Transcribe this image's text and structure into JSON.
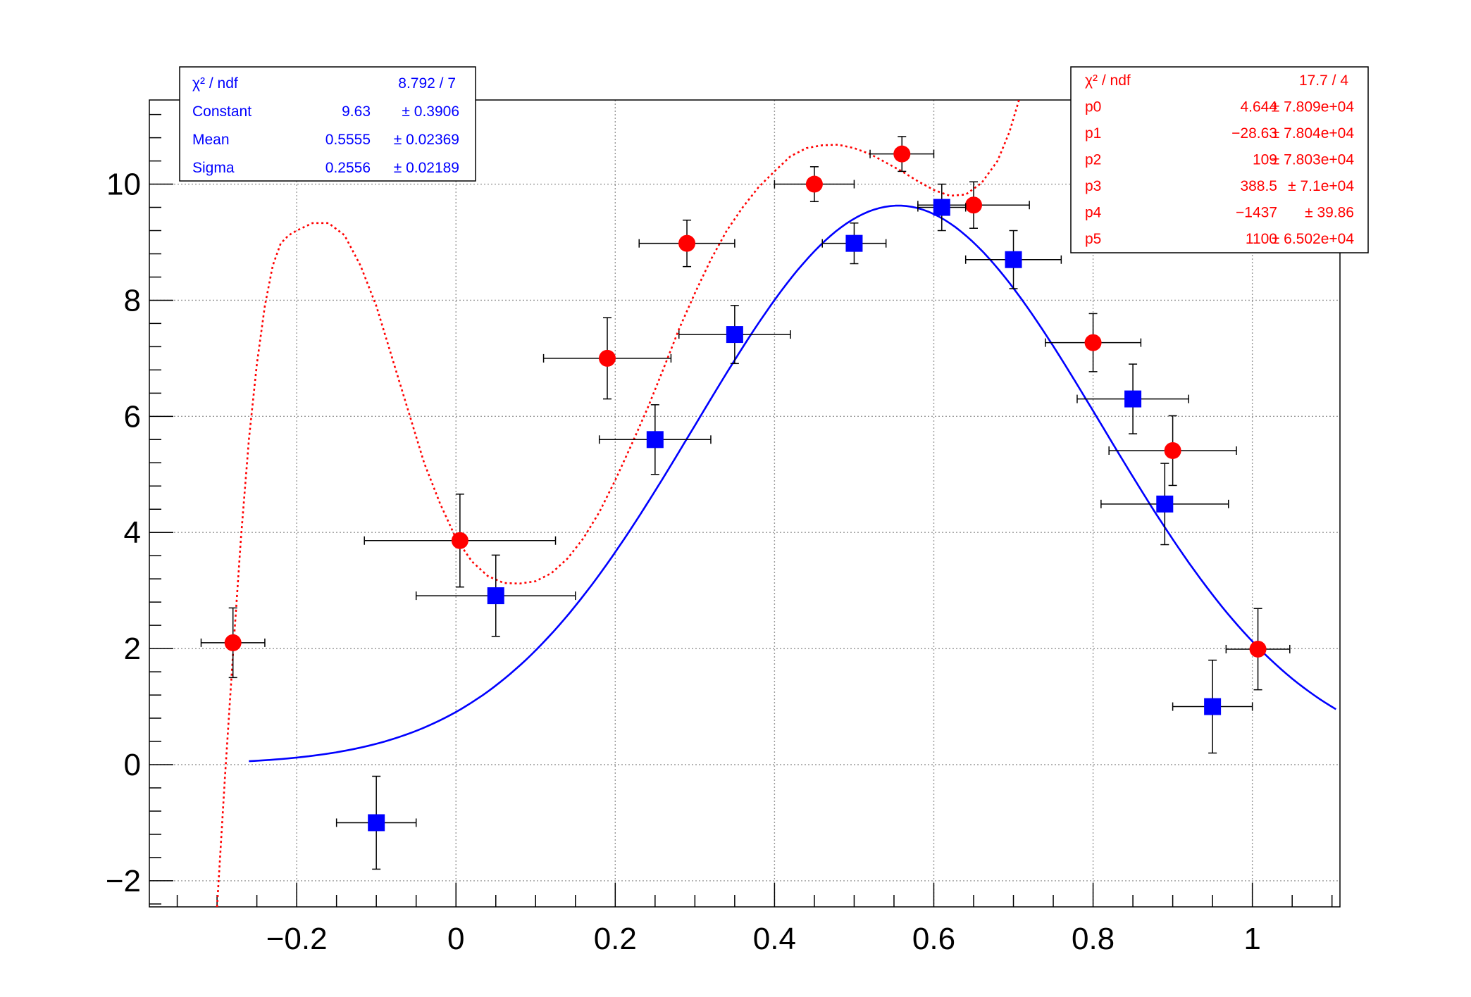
{
  "chart_data": {
    "type": "scatter",
    "xlim": [
      -0.385,
      1.11
    ],
    "ylim": [
      -2.45,
      11.45
    ],
    "x_ticks": [
      "−0.2",
      "0",
      "0.2",
      "0.4",
      "0.6",
      "0.8",
      "1"
    ],
    "x_tick_values": [
      -0.2,
      0,
      0.2,
      0.4,
      0.6,
      0.8,
      1.0
    ],
    "y_ticks": [
      "−2",
      "0",
      "2",
      "4",
      "6",
      "8",
      "10"
    ],
    "y_tick_values": [
      -2,
      0,
      2,
      4,
      6,
      8,
      10
    ],
    "grid": true,
    "series": [
      {
        "color": "#ff0000",
        "marker": "circle",
        "points": [
          {
            "x": -0.28,
            "y": 2.1,
            "ex": 0.04,
            "ey": 0.6
          },
          {
            "x": 0.005,
            "y": 3.86,
            "ex": 0.12,
            "ey": 0.8
          },
          {
            "x": 0.19,
            "y": 7.0,
            "ex": 0.08,
            "ey": 0.7
          },
          {
            "x": 0.29,
            "y": 8.98,
            "ex": 0.06,
            "ey": 0.4
          },
          {
            "x": 0.45,
            "y": 10.0,
            "ex": 0.05,
            "ey": 0.3
          },
          {
            "x": 0.56,
            "y": 10.52,
            "ex": 0.04,
            "ey": 0.3
          },
          {
            "x": 0.65,
            "y": 9.64,
            "ex": 0.07,
            "ey": 0.4
          },
          {
            "x": 0.8,
            "y": 7.27,
            "ex": 0.06,
            "ey": 0.5
          },
          {
            "x": 0.9,
            "y": 5.41,
            "ex": 0.08,
            "ey": 0.6
          },
          {
            "x": 1.007,
            "y": 1.99,
            "ex": 0.04,
            "ey": 0.7
          }
        ]
      },
      {
        "color": "#0000ff",
        "marker": "square",
        "points": [
          {
            "x": -0.1,
            "y": -1.0,
            "ex": 0.05,
            "ey": 0.8
          },
          {
            "x": 0.05,
            "y": 2.91,
            "ex": 0.1,
            "ey": 0.7
          },
          {
            "x": 0.25,
            "y": 5.6,
            "ex": 0.07,
            "ey": 0.6
          },
          {
            "x": 0.35,
            "y": 7.41,
            "ex": 0.07,
            "ey": 0.5
          },
          {
            "x": 0.5,
            "y": 8.98,
            "ex": 0.04,
            "ey": 0.35
          },
          {
            "x": 0.61,
            "y": 9.6,
            "ex": 0.03,
            "ey": 0.4
          },
          {
            "x": 0.7,
            "y": 8.7,
            "ex": 0.06,
            "ey": 0.5
          },
          {
            "x": 0.85,
            "y": 6.3,
            "ex": 0.07,
            "ey": 0.6
          },
          {
            "x": 0.89,
            "y": 4.49,
            "ex": 0.08,
            "ey": 0.7
          },
          {
            "x": 0.95,
            "y": 1.0,
            "ex": 0.05,
            "ey": 0.8
          }
        ]
      }
    ],
    "fits": [
      {
        "color": "#0000ff",
        "style": "solid",
        "function": "gaus",
        "constant": 9.63,
        "mean": 0.5555,
        "sigma": 0.2556,
        "range": [
          -0.26,
          1.105
        ]
      },
      {
        "color": "#ff0000",
        "style": "dotted",
        "function": "pol5",
        "curve_points": [
          [
            -0.3,
            -2.45
          ],
          [
            -0.29,
            -0.2
          ],
          [
            -0.28,
            1.9
          ],
          [
            -0.27,
            3.9
          ],
          [
            -0.26,
            5.6
          ],
          [
            -0.25,
            6.9
          ],
          [
            -0.24,
            7.9
          ],
          [
            -0.23,
            8.6
          ],
          [
            -0.22,
            8.98
          ],
          [
            -0.21,
            9.12
          ],
          [
            -0.2,
            9.2
          ],
          [
            -0.18,
            9.33
          ],
          [
            -0.16,
            9.33
          ],
          [
            -0.14,
            9.12
          ],
          [
            -0.12,
            8.6
          ],
          [
            -0.1,
            7.9
          ],
          [
            -0.08,
            7.0
          ],
          [
            -0.06,
            6.1
          ],
          [
            -0.04,
            5.2
          ],
          [
            -0.02,
            4.5
          ],
          [
            0.0,
            3.9
          ],
          [
            0.02,
            3.5
          ],
          [
            0.04,
            3.25
          ],
          [
            0.06,
            3.13
          ],
          [
            0.08,
            3.12
          ],
          [
            0.1,
            3.16
          ],
          [
            0.12,
            3.3
          ],
          [
            0.14,
            3.55
          ],
          [
            0.16,
            3.9
          ],
          [
            0.18,
            4.35
          ],
          [
            0.2,
            4.9
          ],
          [
            0.22,
            5.5
          ],
          [
            0.24,
            6.12
          ],
          [
            0.26,
            6.8
          ],
          [
            0.28,
            7.5
          ],
          [
            0.3,
            8.12
          ],
          [
            0.32,
            8.7
          ],
          [
            0.34,
            9.2
          ],
          [
            0.36,
            9.6
          ],
          [
            0.38,
            9.95
          ],
          [
            0.4,
            10.22
          ],
          [
            0.42,
            10.48
          ],
          [
            0.44,
            10.62
          ],
          [
            0.46,
            10.67
          ],
          [
            0.48,
            10.68
          ],
          [
            0.5,
            10.62
          ],
          [
            0.52,
            10.52
          ],
          [
            0.54,
            10.37
          ],
          [
            0.56,
            10.22
          ],
          [
            0.58,
            10.05
          ],
          [
            0.6,
            9.9
          ],
          [
            0.62,
            9.8
          ],
          [
            0.64,
            9.82
          ],
          [
            0.66,
            10.02
          ],
          [
            0.68,
            10.4
          ],
          [
            0.695,
            10.9
          ],
          [
            0.707,
            11.45
          ]
        ]
      }
    ],
    "stat_boxes": [
      {
        "color": "#0000ff",
        "rows": [
          {
            "label": "χ² / ndf",
            "value": "8.792 / 7",
            "error": ""
          },
          {
            "label": "Constant",
            "value": "9.63",
            "error": "± 0.3906"
          },
          {
            "label": "Mean",
            "value": "0.5555",
            "error": "± 0.02369"
          },
          {
            "label": "Sigma",
            "value": "0.2556",
            "error": "± 0.02189"
          }
        ]
      },
      {
        "color": "#ff0000",
        "rows": [
          {
            "label": "χ² / ndf",
            "value": "17.7 / 4",
            "error": ""
          },
          {
            "label": "p0",
            "value": "4.644",
            "error": "± 7.809e+04"
          },
          {
            "label": "p1",
            "value": "−28.63",
            "error": "± 7.804e+04"
          },
          {
            "label": "p2",
            "value": "109",
            "error": "± 7.803e+04"
          },
          {
            "label": "p3",
            "value": "388.5",
            "error": "± 7.1e+04"
          },
          {
            "label": "p4",
            "value": "−1437",
            "error": "± 39.86"
          },
          {
            "label": "p5",
            "value": "1100",
            "error": "± 6.502e+04"
          }
        ]
      }
    ]
  }
}
